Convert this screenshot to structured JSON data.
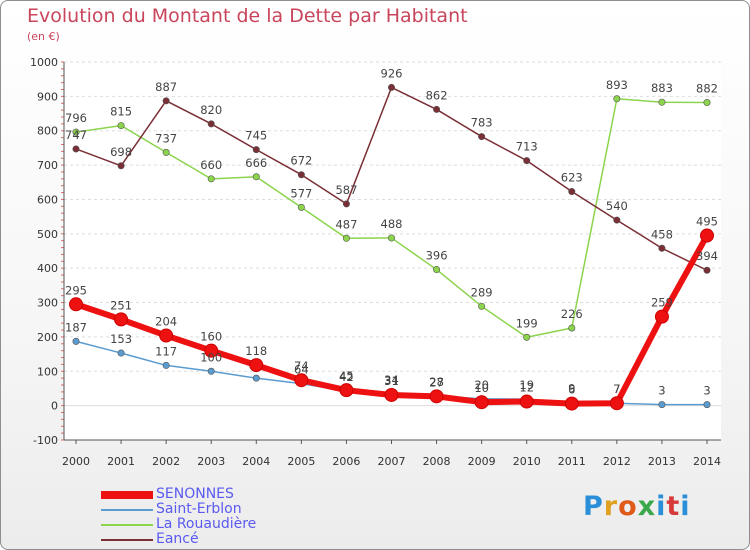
{
  "title": "Evolution du Montant de la Dette par Habitant",
  "subtitle": "(en €)",
  "logo_letters": [
    "P",
    "r",
    "o",
    "x",
    "i",
    "t",
    "i"
  ],
  "chart_data": {
    "type": "line",
    "title": "Evolution du Montant de la Dette par Habitant",
    "ylabel": "(en €)",
    "x": [
      "2000",
      "2001",
      "2002",
      "2003",
      "2004",
      "2005",
      "2006",
      "2007",
      "2008",
      "2009",
      "2010",
      "2011",
      "2012",
      "2013",
      "2014"
    ],
    "ylim": [
      -100,
      1000
    ],
    "yticks": [
      "-100",
      "0",
      "100",
      "200",
      "300",
      "400",
      "500",
      "600",
      "700",
      "800",
      "900",
      "1000"
    ],
    "grid": "horizontal",
    "legend_position": "bottom-left",
    "series": [
      {
        "name": "Saint-Erblon",
        "color": "#5a9bd0",
        "values": [
          187,
          153,
          117,
          100,
          80,
          64,
          42,
          34,
          28,
          20,
          19,
          9,
          7,
          3,
          3
        ],
        "labels": [
          "187",
          "153",
          "117",
          "100",
          "",
          "64",
          "42",
          "34",
          "28",
          "20",
          "19",
          "9",
          "7",
          "3",
          "3"
        ]
      },
      {
        "name": "La Rouaudière",
        "color": "#8bd44c",
        "values": [
          796,
          815,
          737,
          660,
          666,
          577,
          487,
          488,
          396,
          289,
          199,
          226,
          893,
          883,
          882
        ],
        "labels": [
          "796",
          "815",
          "737",
          "660",
          "666",
          "577",
          "487",
          "488",
          "396",
          "289",
          "199",
          "226",
          "893",
          "883",
          "882"
        ]
      },
      {
        "name": "Eancé",
        "color": "#7a2e36",
        "values": [
          747,
          698,
          887,
          820,
          745,
          672,
          587,
          926,
          862,
          783,
          713,
          623,
          540,
          458,
          394
        ],
        "labels": [
          "747",
          "698",
          "887",
          "820",
          "745",
          "672",
          "587",
          "926",
          "862",
          "783",
          "713",
          "623",
          "540",
          "458",
          "394"
        ]
      },
      {
        "name": "SENONNES",
        "color": "#ee1111",
        "values": [
          295,
          251,
          204,
          160,
          118,
          74,
          45,
          31,
          27,
          10,
          12,
          6,
          7,
          259,
          495
        ],
        "labels": [
          "295",
          "251",
          "204",
          "160",
          "118",
          "74",
          "45",
          "31",
          "27",
          "10",
          "12",
          "6",
          "7",
          "259",
          "495"
        ]
      }
    ]
  }
}
